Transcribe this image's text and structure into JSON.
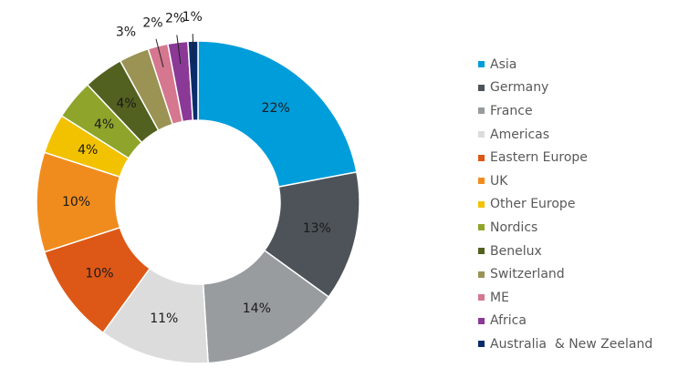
{
  "chart_data": {
    "type": "pie",
    "donut": true,
    "categories": [
      "Asia",
      "Germany",
      "France",
      "Americas",
      "Eastern Europe",
      "UK",
      "Other Europe",
      "Nordics",
      "Benelux",
      "Switzerland",
      "ME",
      "Africa",
      "Australia  & New Zeeland"
    ],
    "values": [
      22,
      13,
      14,
      11,
      10,
      10,
      4,
      4,
      4,
      3,
      2,
      2,
      1
    ],
    "data_labels": [
      "22%",
      "13%",
      "14%",
      "11%",
      "10%",
      "10%",
      "4%",
      "4%",
      "4%",
      "3%",
      "2%",
      "2%",
      "1%"
    ],
    "colors": [
      "#009ddb",
      "#4d5359",
      "#989c9f",
      "#dcdcdc",
      "#dd5816",
      "#f08c1e",
      "#f2c200",
      "#8fa42a",
      "#526020",
      "#9a9354",
      "#d4778f",
      "#8a3a96",
      "#0a2c6b"
    ],
    "legend_position": "right",
    "title": "",
    "unit": "%"
  }
}
